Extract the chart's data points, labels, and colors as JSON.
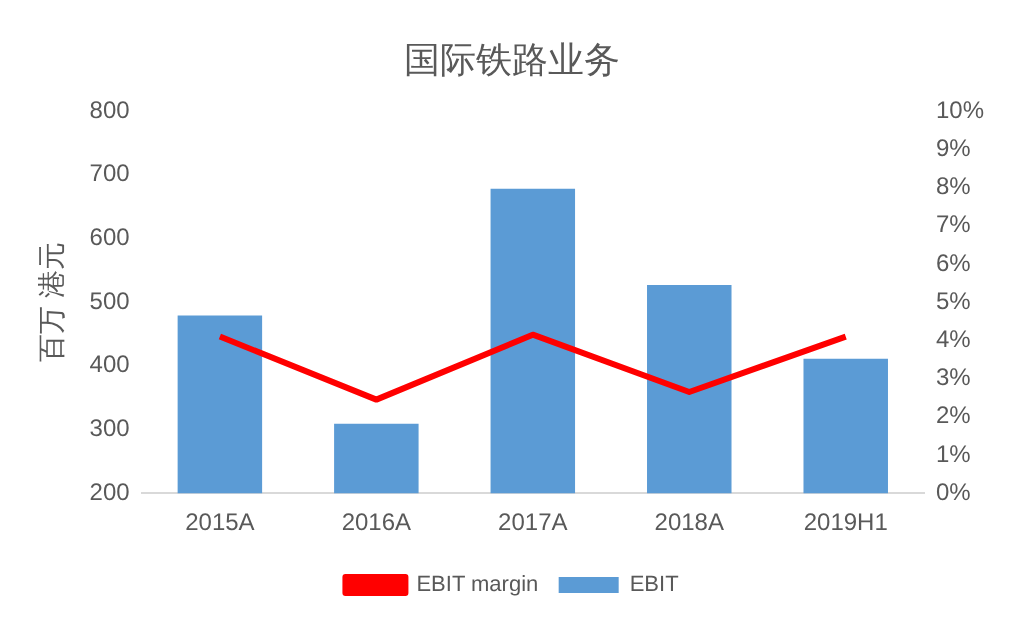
{
  "chart_data": {
    "type": "bar",
    "title": "国际铁路业务",
    "ylabel": "百万 港元",
    "categories": [
      "2015A",
      "2016A",
      "2017A",
      "2018A",
      "2019H1"
    ],
    "series": [
      {
        "name": "EBIT",
        "color": "#5b9bd5",
        "values": [
          479,
          309,
          678,
          527,
          411
        ]
      },
      {
        "name": "EBIT margin",
        "type": "line",
        "axis": "y2",
        "color": "#ff0000",
        "values": [
          4.1,
          2.45,
          4.15,
          2.65,
          4.1
        ]
      }
    ],
    "ylim": [
      200,
      800
    ],
    "yticks": [
      200,
      300,
      400,
      500,
      600,
      700,
      800
    ],
    "y2lim": [
      0,
      10
    ],
    "y2ticks": [
      {
        "value": 0,
        "label": "0%"
      },
      {
        "value": 1,
        "label": "1%"
      },
      {
        "value": 2,
        "label": "2%"
      },
      {
        "value": 3,
        "label": "3%"
      },
      {
        "value": 4,
        "label": "4%"
      },
      {
        "value": 5,
        "label": "5%"
      },
      {
        "value": 6,
        "label": "6%"
      },
      {
        "value": 7,
        "label": "7%"
      },
      {
        "value": 8,
        "label": "8%"
      },
      {
        "value": 9,
        "label": "9%"
      },
      {
        "value": 10,
        "label": "10%"
      }
    ],
    "grid": false,
    "legend": "bottom",
    "marker": "none"
  }
}
